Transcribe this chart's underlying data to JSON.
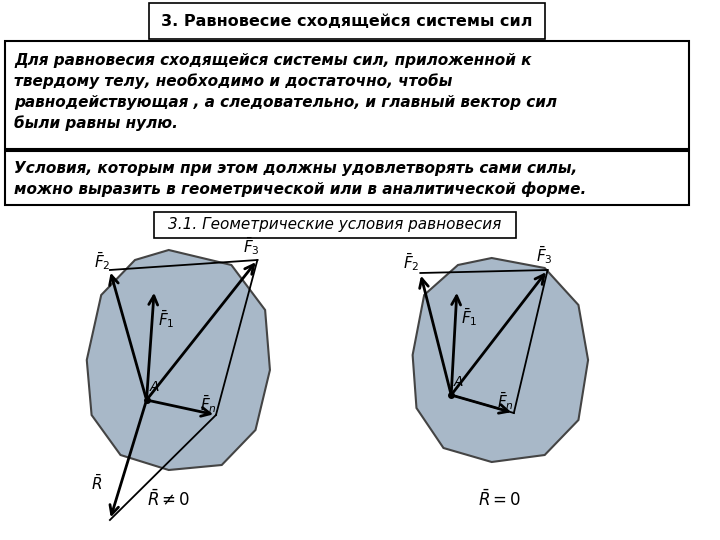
{
  "title": "3. Равновесие сходящейся системы сил",
  "text1": "Для равновесия сходящейся системы сил, приложенной к\nтвердому телу, необходимо и достаточно, чтобы\nравнодействующая , а следовательно, и главный вектор сил\nбыли равны нулю.",
  "text2": "Условия, которым при этом должны удовлетворять сами силы,\nможно выразить в геометрической или в аналитической форме.",
  "subtitle": "3.1. Геометрические условия равновесия",
  "bg_color": "#ffffff",
  "shape_color": "#a8b8c8",
  "shape_edge_color": "#444444",
  "arrow_color": "#000000"
}
